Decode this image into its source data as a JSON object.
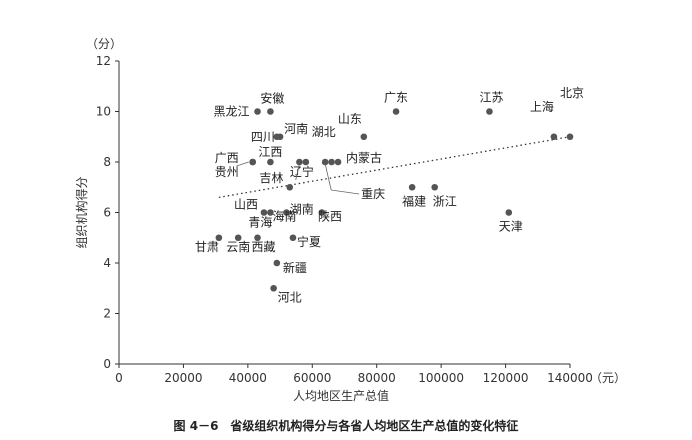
{
  "chart_data": {
    "type": "scatter",
    "xlabel": "人均地区生产总值",
    "ylabel": "组织机构得分",
    "x_unit": "（元）",
    "y_unit": "（分）",
    "xlim": [
      0,
      140000
    ],
    "ylim": [
      0,
      12
    ],
    "x_ticks": [
      "0",
      "20000",
      "40000",
      "60000",
      "80000",
      "100000",
      "120000",
      "140000"
    ],
    "y_ticks": [
      "0",
      "2",
      "4",
      "6",
      "8",
      "10",
      "12"
    ],
    "grid": false,
    "trendline": {
      "style": "dotted",
      "x": [
        31000,
        140000
      ],
      "y": [
        6.6,
        9.0
      ]
    },
    "points": [
      {
        "name": "黑龙江",
        "x": 43000,
        "y": 10
      },
      {
        "name": "安徽",
        "x": 47000,
        "y": 10
      },
      {
        "name": "四川",
        "x": 49000,
        "y": 9
      },
      {
        "name": "河南",
        "x": 50000,
        "y": 9
      },
      {
        "name": "广西",
        "x": 41500,
        "y": 8
      },
      {
        "name": "贵州",
        "x": 41500,
        "y": 8
      },
      {
        "name": "江西",
        "x": 47000,
        "y": 8
      },
      {
        "name": "吉林",
        "x": 56000,
        "y": 8
      },
      {
        "name": "辽宁",
        "x": 58000,
        "y": 8
      },
      {
        "name": "湖北",
        "x": 66000,
        "y": 8
      },
      {
        "name": "内蒙古",
        "x": 68000,
        "y": 8
      },
      {
        "name": "山东",
        "x": 76000,
        "y": 9
      },
      {
        "name": "广东",
        "x": 86000,
        "y": 10
      },
      {
        "name": "江苏",
        "x": 115000,
        "y": 10
      },
      {
        "name": "上海",
        "x": 135000,
        "y": 9
      },
      {
        "name": "北京",
        "x": 140000,
        "y": 9
      },
      {
        "name": "湖南",
        "x": 53000,
        "y": 7
      },
      {
        "name": "重庆",
        "x": 64000,
        "y": 8
      },
      {
        "name": "福建",
        "x": 91000,
        "y": 7
      },
      {
        "name": "浙江",
        "x": 98000,
        "y": 7
      },
      {
        "name": "天津",
        "x": 121000,
        "y": 6
      },
      {
        "name": "山西",
        "x": 45000,
        "y": 6
      },
      {
        "name": "青海",
        "x": 47000,
        "y": 6
      },
      {
        "name": "海南",
        "x": 52000,
        "y": 6
      },
      {
        "name": "陕西",
        "x": 63000,
        "y": 6
      },
      {
        "name": "宁夏",
        "x": 54000,
        "y": 5
      },
      {
        "name": "甘肃",
        "x": 31000,
        "y": 5
      },
      {
        "name": "云南",
        "x": 37000,
        "y": 5
      },
      {
        "name": "西藏",
        "x": 43000,
        "y": 5
      },
      {
        "name": "新疆",
        "x": 49000,
        "y": 4
      },
      {
        "name": "河北",
        "x": 48000,
        "y": 3
      }
    ]
  },
  "caption": "图 4－6　省级组织机构得分与各省人均地区生产总值的变化特征"
}
